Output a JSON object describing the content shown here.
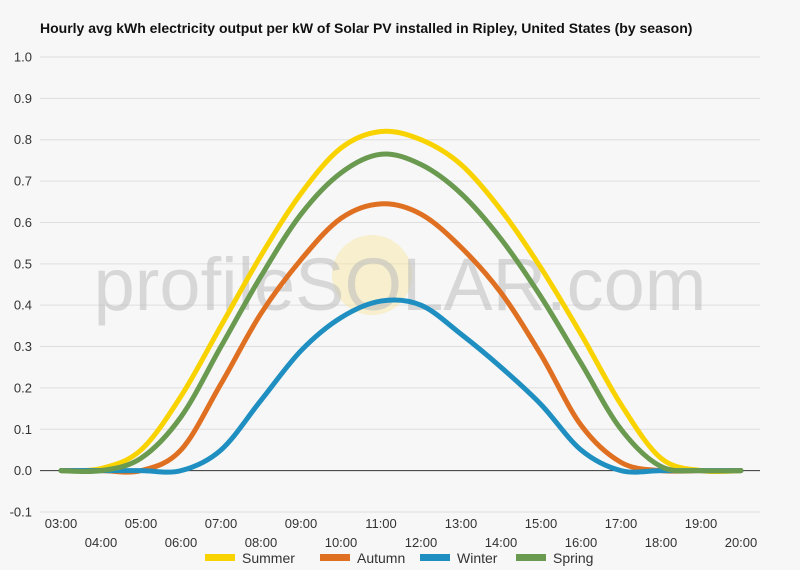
{
  "chart_data": {
    "type": "line",
    "title": "Hourly avg kWh electricity output per kW of Solar PV installed in Ripley, United States (by season)",
    "watermark": "profileSOLAR.com",
    "x": [
      "03:00",
      "04:00",
      "05:00",
      "06:00",
      "07:00",
      "08:00",
      "09:00",
      "10:00",
      "11:00",
      "12:00",
      "13:00",
      "14:00",
      "15:00",
      "16:00",
      "17:00",
      "18:00",
      "19:00",
      "20:00"
    ],
    "y_ticks": [
      "-0.1",
      "0.0",
      "0.1",
      "0.2",
      "0.3",
      "0.4",
      "0.5",
      "0.6",
      "0.7",
      "0.8",
      "0.9",
      "1.0"
    ],
    "ylim": [
      -0.1,
      1.0
    ],
    "grid": true,
    "legend_position": "bottom",
    "series": [
      {
        "name": "Summer",
        "color": "#f9d300",
        "values": [
          0.0,
          0.005,
          0.05,
          0.18,
          0.35,
          0.52,
          0.67,
          0.78,
          0.82,
          0.8,
          0.74,
          0.63,
          0.49,
          0.33,
          0.16,
          0.03,
          0.0,
          0.0
        ]
      },
      {
        "name": "Autumn",
        "color": "#e07021",
        "values": [
          0.0,
          0.0,
          0.0,
          0.05,
          0.21,
          0.38,
          0.51,
          0.61,
          0.645,
          0.62,
          0.54,
          0.43,
          0.28,
          0.11,
          0.02,
          0.0,
          0.0,
          0.0
        ]
      },
      {
        "name": "Winter",
        "color": "#1e8fc0",
        "values": [
          0.0,
          0.0,
          0.0,
          0.0,
          0.05,
          0.17,
          0.29,
          0.37,
          0.41,
          0.4,
          0.33,
          0.25,
          0.16,
          0.05,
          0.0,
          0.0,
          0.0,
          0.0
        ]
      },
      {
        "name": "Spring",
        "color": "#6a9a50",
        "values": [
          0.0,
          0.0,
          0.03,
          0.13,
          0.3,
          0.47,
          0.62,
          0.72,
          0.765,
          0.74,
          0.67,
          0.56,
          0.42,
          0.26,
          0.1,
          0.01,
          0.0,
          0.0
        ]
      }
    ]
  }
}
